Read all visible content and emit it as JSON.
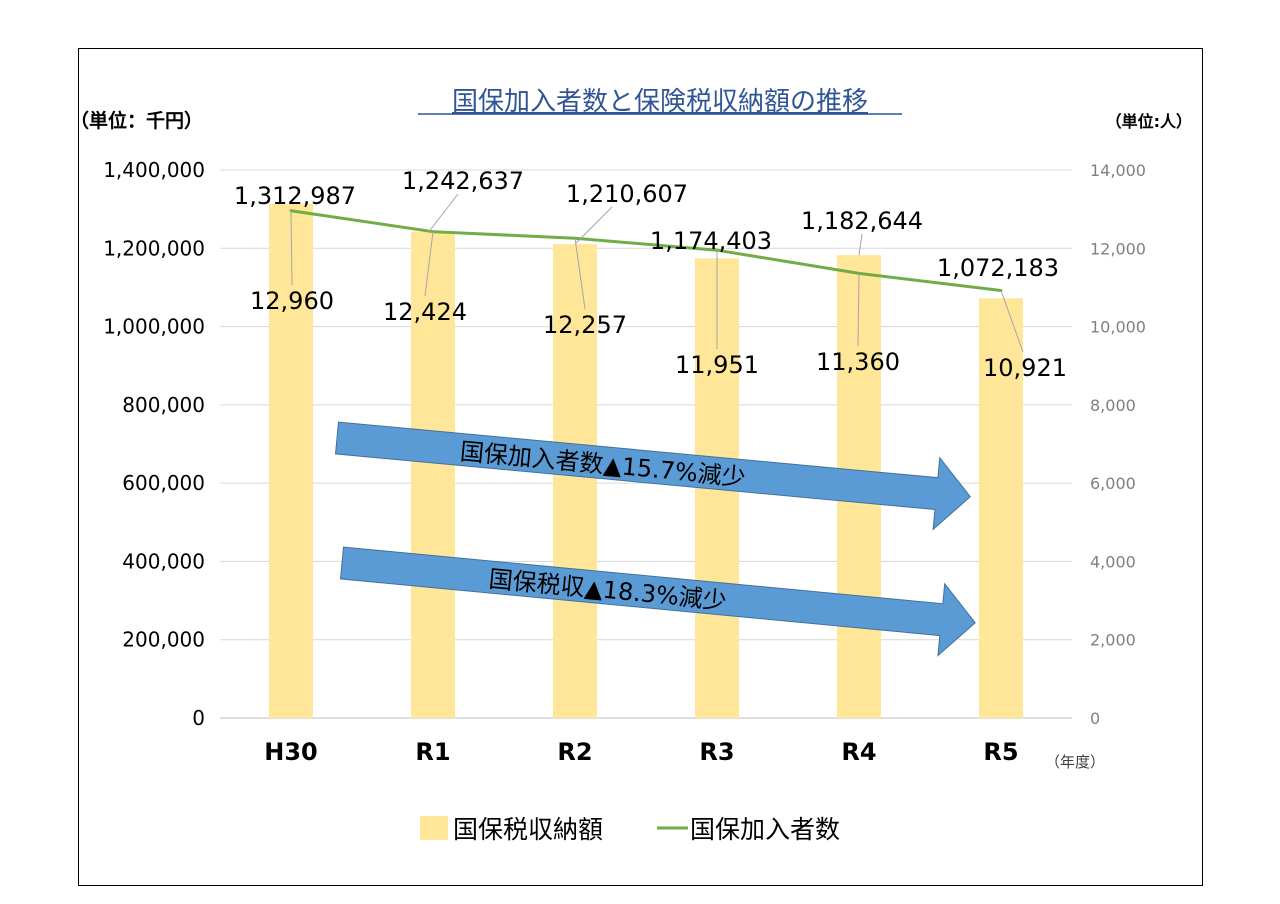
{
  "chart_data": {
    "type": "bar+line",
    "title": "国保加入者数と保険税収納額の推移",
    "left_unit": "（単位：千円）",
    "right_unit": "（単位:人）",
    "x_unit": "（年度）",
    "categories": [
      "H30",
      "R1",
      "R2",
      "R3",
      "R4",
      "R5"
    ],
    "series": [
      {
        "name": "国保税収納額",
        "type": "bar",
        "axis": "left",
        "color": "#FFE699",
        "values": [
          1312987,
          1242637,
          1210607,
          1174403,
          1182644,
          1072183
        ],
        "labels": [
          "1,312,987",
          "1,242,637",
          "1,210,607",
          "1,174,403",
          "1,182,644",
          "1,072,183"
        ]
      },
      {
        "name": "国保加入者数",
        "type": "line",
        "axis": "right",
        "color": "#70AD47",
        "values": [
          12960,
          12424,
          12257,
          11951,
          11360,
          10921
        ],
        "labels": [
          "12,960",
          "12,424",
          "12,257",
          "11,951",
          "11,360",
          "10,921"
        ]
      }
    ],
    "left_axis": {
      "range": [
        0,
        1400000
      ],
      "ticks": [
        "0",
        "200,000",
        "400,000",
        "600,000",
        "800,000",
        "1,000,000",
        "1,200,000",
        "1,400,000"
      ]
    },
    "right_axis": {
      "range": [
        0,
        14000
      ],
      "ticks": [
        "0",
        "2,000",
        "4,000",
        "6,000",
        "8,000",
        "10,000",
        "12,000",
        "14,000"
      ]
    },
    "grid": true,
    "legend_position": "bottom",
    "annotations": [
      {
        "text": "国保加入者数▲15.7%減少",
        "color": "#5B9BD5"
      },
      {
        "text": "国保税収▲18.3%減少",
        "color": "#5B9BD5"
      }
    ]
  }
}
